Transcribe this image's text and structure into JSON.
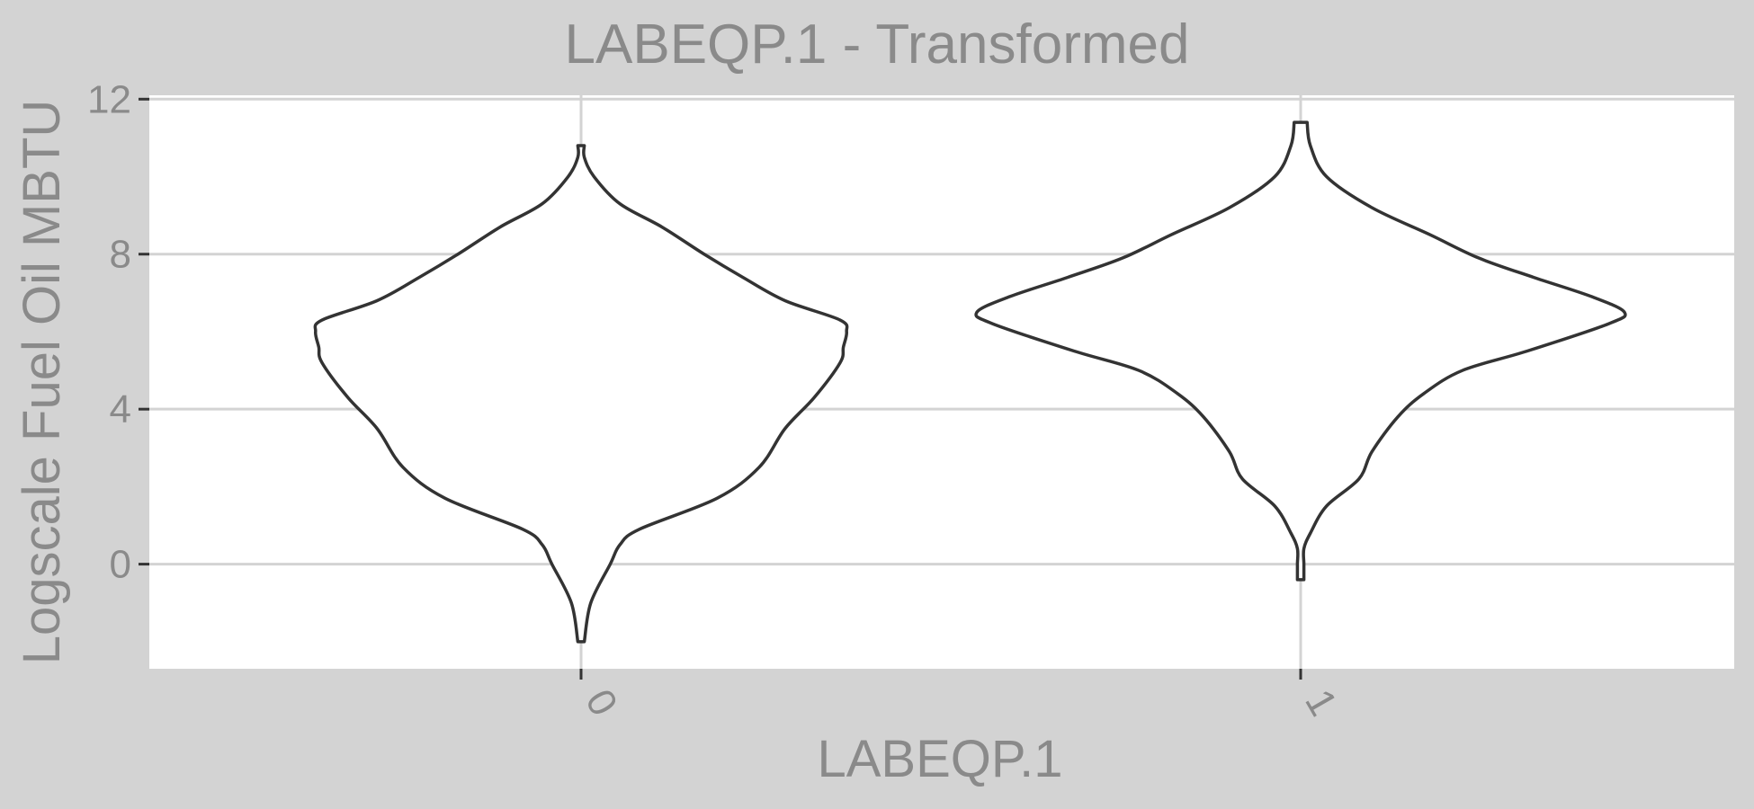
{
  "chart_data": {
    "type": "violin",
    "title": "LABEQP.1 - Transformed",
    "xlabel": "LABEQP.1",
    "ylabel": "Logscale Fuel Oil MBTU",
    "categories": [
      "0",
      "1"
    ],
    "yticks": [
      0,
      4,
      8,
      12
    ],
    "ylim": [
      -2.7,
      12.1
    ],
    "grid": true,
    "legend": "none",
    "colors": {
      "background": "#d3d3d3",
      "panel": "#ffffff",
      "outline": "#333333",
      "text": "#8a8a8a"
    },
    "violins": [
      {
        "category": "0",
        "min": -2.0,
        "max": 10.8,
        "profile": [
          [
            -2.0,
            0.01
          ],
          [
            -1.0,
            0.03
          ],
          [
            0.0,
            0.09
          ],
          [
            0.5,
            0.12
          ],
          [
            0.9,
            0.18
          ],
          [
            1.7,
            0.42
          ],
          [
            2.5,
            0.55
          ],
          [
            3.5,
            0.63
          ],
          [
            4.3,
            0.72
          ],
          [
            5.2,
            0.8
          ],
          [
            5.6,
            0.81
          ],
          [
            6.0,
            0.82
          ],
          [
            6.3,
            0.8
          ],
          [
            6.8,
            0.63
          ],
          [
            7.4,
            0.5
          ],
          [
            8.0,
            0.38
          ],
          [
            8.7,
            0.25
          ],
          [
            9.3,
            0.12
          ],
          [
            10.0,
            0.04
          ],
          [
            10.5,
            0.01
          ],
          [
            10.8,
            0.01
          ]
        ]
      },
      {
        "category": "1",
        "min": -0.4,
        "max": 11.4,
        "profile": [
          [
            -0.4,
            0.01
          ],
          [
            0.0,
            0.01
          ],
          [
            0.4,
            0.01
          ],
          [
            0.8,
            0.03
          ],
          [
            1.5,
            0.08
          ],
          [
            2.2,
            0.18
          ],
          [
            2.9,
            0.22
          ],
          [
            3.8,
            0.3
          ],
          [
            4.4,
            0.38
          ],
          [
            5.0,
            0.5
          ],
          [
            5.5,
            0.7
          ],
          [
            6.2,
            0.95
          ],
          [
            6.5,
            1.0
          ],
          [
            6.9,
            0.9
          ],
          [
            7.4,
            0.72
          ],
          [
            7.9,
            0.55
          ],
          [
            8.5,
            0.4
          ],
          [
            9.2,
            0.22
          ],
          [
            10.0,
            0.08
          ],
          [
            10.8,
            0.03
          ],
          [
            11.4,
            0.02
          ]
        ]
      }
    ]
  }
}
